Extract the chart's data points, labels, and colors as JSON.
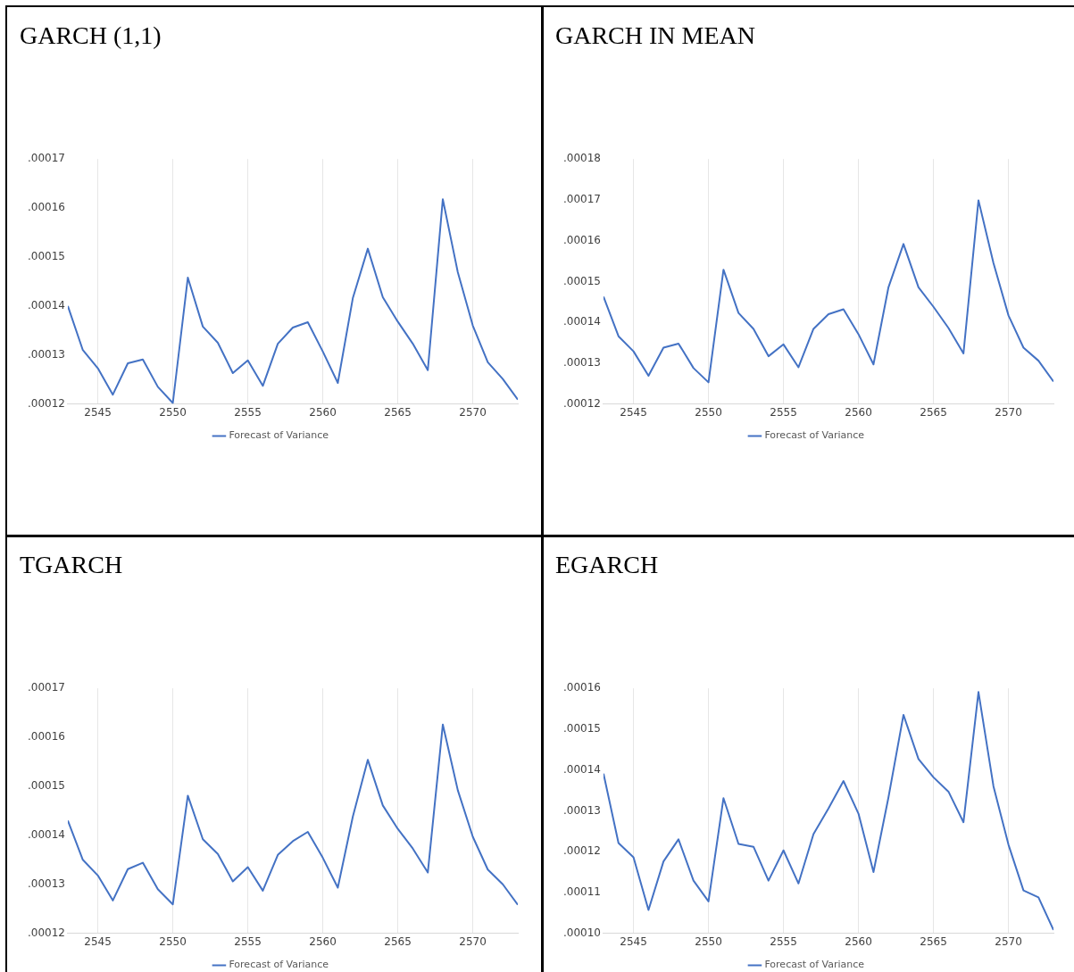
{
  "chart_data": [
    {
      "type": "line",
      "title": "GARCH (1,1)",
      "x": [
        2543,
        2544,
        2545,
        2546,
        2547,
        2548,
        2549,
        2550,
        2551,
        2552,
        2553,
        2554,
        2555,
        2556,
        2557,
        2558,
        2559,
        2560,
        2561,
        2562,
        2563,
        2564,
        2565,
        2566,
        2567,
        2568,
        2569,
        2570,
        2571,
        2572,
        2573
      ],
      "series": [
        {
          "name": "Forecast of Variance",
          "color": "#4472c4",
          "values": [
            0.00014,
            0.000131,
            0.0001273,
            0.0001219,
            0.0001283,
            0.0001291,
            0.0001235,
            0.0001202,
            0.0001458,
            0.0001358,
            0.0001325,
            0.0001263,
            0.0001289,
            0.0001237,
            0.0001323,
            0.0001356,
            0.0001367,
            0.0001307,
            0.0001243,
            0.0001416,
            0.0001517,
            0.0001418,
            0.0001368,
            0.0001323,
            0.0001269,
            0.0001618,
            0.0001469,
            0.000136,
            0.0001285,
            0.0001251,
            0.0001209
          ]
        }
      ],
      "xlim": [
        2543,
        2573
      ],
      "xticks": [
        2545,
        2550,
        2555,
        2560,
        2565,
        2570
      ],
      "ylim": [
        0.00012,
        0.00017
      ],
      "yticks": [
        {
          "value": 0.00012,
          "label": ".00012"
        },
        {
          "value": 0.00013,
          "label": ".00013"
        },
        {
          "value": 0.00014,
          "label": ".00014"
        },
        {
          "value": 0.00015,
          "label": ".00015"
        },
        {
          "value": 0.00016,
          "label": ".00016"
        },
        {
          "value": 0.00017,
          "label": ".00017"
        }
      ],
      "grid": "x",
      "legend": "bottom"
    },
    {
      "type": "line",
      "title": "GARCH IN MEAN",
      "x": [
        2543,
        2544,
        2545,
        2546,
        2547,
        2548,
        2549,
        2550,
        2551,
        2552,
        2553,
        2554,
        2555,
        2556,
        2557,
        2558,
        2559,
        2560,
        2561,
        2562,
        2563,
        2564,
        2565,
        2566,
        2567,
        2568,
        2569,
        2570,
        2571,
        2572,
        2573
      ],
      "series": [
        {
          "name": "Forecast of Variance",
          "color": "#4472c4",
          "values": [
            0.0001463,
            0.0001366,
            0.0001329,
            0.0001269,
            0.0001338,
            0.0001348,
            0.0001288,
            0.0001253,
            0.0001529,
            0.0001423,
            0.0001384,
            0.0001317,
            0.0001346,
            0.000129,
            0.0001384,
            0.000142,
            0.0001432,
            0.0001371,
            0.0001297,
            0.0001486,
            0.0001592,
            0.0001486,
            0.0001438,
            0.0001386,
            0.0001324,
            0.0001699,
            0.0001545,
            0.0001417,
            0.0001338,
            0.0001306,
            0.0001255
          ]
        }
      ],
      "xlim": [
        2543,
        2573
      ],
      "xticks": [
        2545,
        2550,
        2555,
        2560,
        2565,
        2570
      ],
      "ylim": [
        0.00012,
        0.00018
      ],
      "yticks": [
        {
          "value": 0.00012,
          "label": ".00012"
        },
        {
          "value": 0.00013,
          "label": ".00013"
        },
        {
          "value": 0.00014,
          "label": ".00014"
        },
        {
          "value": 0.00015,
          "label": ".00015"
        },
        {
          "value": 0.00016,
          "label": ".00016"
        },
        {
          "value": 0.00017,
          "label": ".00017"
        },
        {
          "value": 0.00018,
          "label": ".00018"
        }
      ],
      "grid": "x",
      "legend": "bottom"
    },
    {
      "type": "line",
      "title": "TGARCH",
      "x": [
        2543,
        2544,
        2545,
        2546,
        2547,
        2548,
        2549,
        2550,
        2551,
        2552,
        2553,
        2554,
        2555,
        2556,
        2557,
        2558,
        2559,
        2560,
        2561,
        2562,
        2563,
        2564,
        2565,
        2566,
        2567,
        2568,
        2569,
        2570,
        2571,
        2572,
        2573
      ],
      "series": [
        {
          "name": "Forecast of Variance",
          "color": "#4472c4",
          "values": [
            0.000143,
            0.000135,
            0.0001318,
            0.0001267,
            0.0001331,
            0.0001344,
            0.000129,
            0.0001259,
            0.0001481,
            0.0001392,
            0.0001362,
            0.0001306,
            0.0001335,
            0.0001287,
            0.000136,
            0.0001388,
            0.0001407,
            0.0001354,
            0.0001293,
            0.0001438,
            0.0001554,
            0.0001461,
            0.0001413,
            0.0001373,
            0.0001324,
            0.0001626,
            0.0001492,
            0.0001397,
            0.000133,
            0.00013,
            0.0001258
          ]
        }
      ],
      "xlim": [
        2543,
        2573
      ],
      "xticks": [
        2545,
        2550,
        2555,
        2560,
        2565,
        2570
      ],
      "ylim": [
        0.00012,
        0.00017
      ],
      "yticks": [
        {
          "value": 0.00012,
          "label": ".00012"
        },
        {
          "value": 0.00013,
          "label": ".00013"
        },
        {
          "value": 0.00014,
          "label": ".00014"
        },
        {
          "value": 0.00015,
          "label": ".00015"
        },
        {
          "value": 0.00016,
          "label": ".00016"
        },
        {
          "value": 0.00017,
          "label": ".00017"
        }
      ],
      "grid": "x",
      "legend": "bottom"
    },
    {
      "type": "line",
      "title": "EGARCH",
      "x": [
        2543,
        2544,
        2545,
        2546,
        2547,
        2548,
        2549,
        2550,
        2551,
        2552,
        2553,
        2554,
        2555,
        2556,
        2557,
        2558,
        2559,
        2560,
        2561,
        2562,
        2563,
        2564,
        2565,
        2566,
        2567,
        2568,
        2569,
        2570,
        2571,
        2572,
        2573
      ],
      "series": [
        {
          "name": "Forecast of Variance",
          "color": "#4472c4",
          "values": [
            0.0001391,
            0.0001221,
            0.0001186,
            0.0001057,
            0.0001176,
            0.000123,
            0.0001129,
            0.0001078,
            0.0001331,
            0.0001219,
            0.0001212,
            0.0001129,
            0.0001203,
            0.0001122,
            0.0001243,
            0.0001306,
            0.0001373,
            0.0001293,
            0.000115,
            0.0001333,
            0.0001535,
            0.0001427,
            0.0001382,
            0.0001347,
            0.0001272,
            0.0001591,
            0.000136,
            0.0001217,
            0.0001105,
            0.0001088,
            0.0001008
          ]
        }
      ],
      "xlim": [
        2543,
        2573
      ],
      "xticks": [
        2545,
        2550,
        2555,
        2560,
        2565,
        2570
      ],
      "ylim": [
        0.0001,
        0.00016
      ],
      "yticks": [
        {
          "value": 0.0001,
          "label": ".00010"
        },
        {
          "value": 0.00011,
          "label": ".00011"
        },
        {
          "value": 0.00012,
          "label": ".00012"
        },
        {
          "value": 0.00013,
          "label": ".00013"
        },
        {
          "value": 0.00014,
          "label": ".00014"
        },
        {
          "value": 0.00015,
          "label": ".00015"
        },
        {
          "value": 0.00016,
          "label": ".00016"
        }
      ],
      "grid": "x",
      "legend": "bottom"
    }
  ]
}
